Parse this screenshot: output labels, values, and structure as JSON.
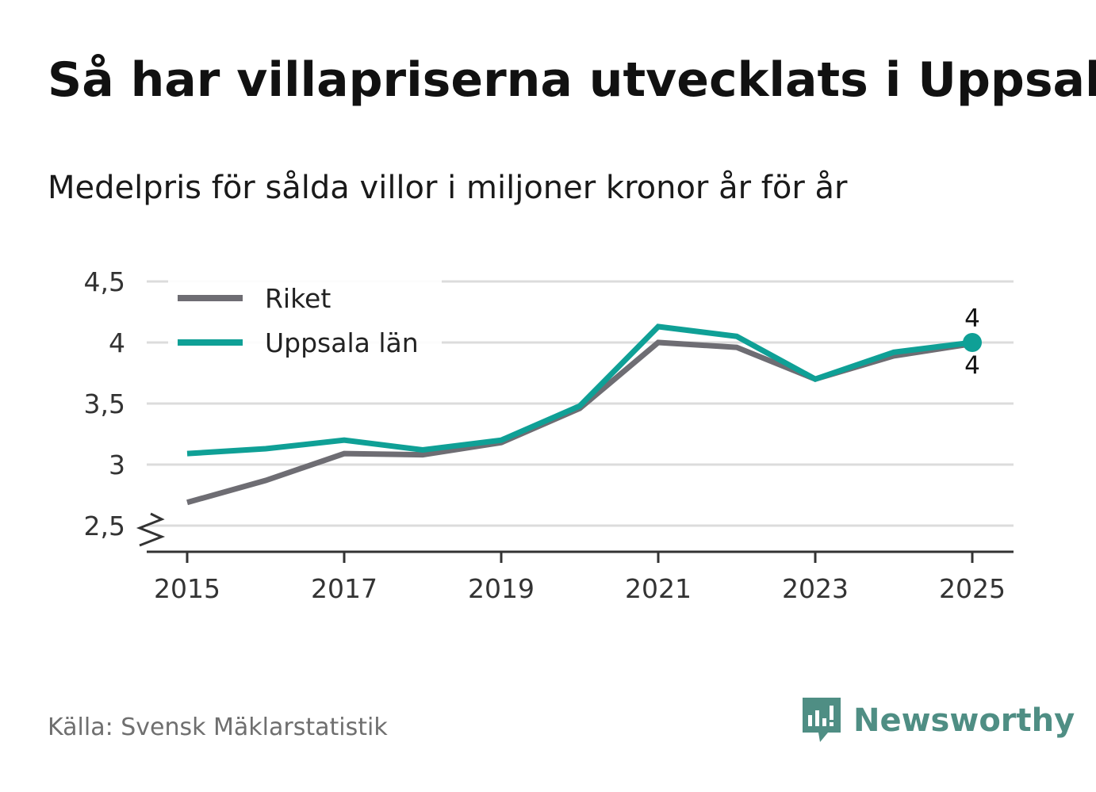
{
  "title": "Så har villapriserna utvecklats i Uppsala",
  "subtitle": "Medelpris för sålda villor i miljoner kronor år för år",
  "source": "Källa: Svensk Mäklarstatistik",
  "brand": {
    "name": "Newsworthy",
    "icon": "newsworthy-logo-icon",
    "color": "#4f8e84"
  },
  "chart_data": {
    "type": "line",
    "title": "Så har villapriserna utvecklats i Uppsala",
    "subtitle": "Medelpris för sålda villor i miljoner kronor år för år",
    "xlabel": "",
    "ylabel": "",
    "x": [
      2015,
      2016,
      2017,
      2018,
      2019,
      2020,
      2021,
      2022,
      2023,
      2024,
      2025
    ],
    "x_ticks": [
      "2015",
      "2017",
      "2019",
      "2021",
      "2023",
      "2025"
    ],
    "y_ticks": [
      "2,5",
      "3",
      "3,5",
      "4",
      "4,5"
    ],
    "y_tick_values": [
      2.5,
      3,
      3.5,
      4,
      4.5
    ],
    "ylim": [
      2.5,
      4.5
    ],
    "grid": true,
    "axis_break": true,
    "legend_position": "top-left",
    "series": [
      {
        "name": "Riket",
        "color": "#6e6d73",
        "values": [
          2.69,
          2.87,
          3.09,
          3.08,
          3.18,
          3.46,
          4.0,
          3.96,
          3.7,
          3.89,
          3.99
        ]
      },
      {
        "name": "Uppsala län",
        "color": "#0fa096",
        "values": [
          3.09,
          3.13,
          3.2,
          3.12,
          3.2,
          3.48,
          4.13,
          4.05,
          3.7,
          3.92,
          4.0
        ]
      }
    ],
    "end_labels": [
      {
        "series": "Uppsala län",
        "text": "4",
        "position": "above"
      },
      {
        "series": "Riket",
        "text": "4",
        "position": "below"
      }
    ]
  }
}
